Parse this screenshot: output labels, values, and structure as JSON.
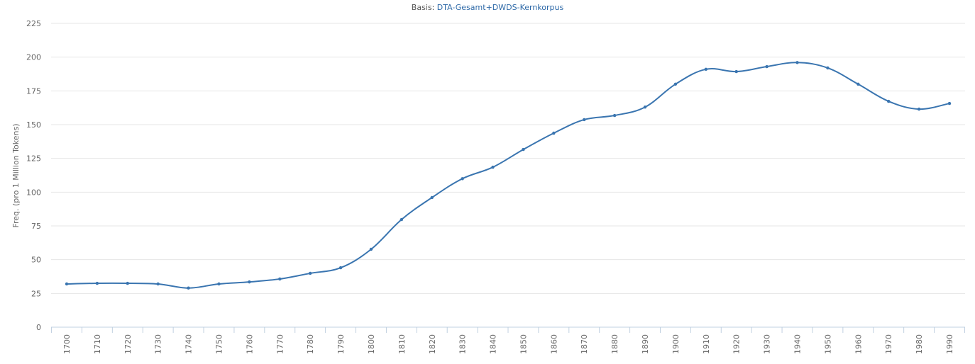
{
  "chart_data": {
    "type": "line",
    "title_prefix": "Basis:",
    "title_link": "DTA-Gesamt+DWDS-Kernkorpus",
    "xlabel": "",
    "ylabel": "Freq. (pro 1 Million Tokens)",
    "ylim": [
      0,
      225
    ],
    "yticks": [
      0,
      25,
      50,
      75,
      100,
      125,
      150,
      175,
      200,
      225
    ],
    "grid": true,
    "smooth": true,
    "line_color": "#3a75b0",
    "x": [
      1700,
      1710,
      1720,
      1730,
      1740,
      1750,
      1760,
      1770,
      1780,
      1790,
      1800,
      1810,
      1820,
      1830,
      1840,
      1850,
      1860,
      1870,
      1880,
      1890,
      1900,
      1910,
      1920,
      1930,
      1940,
      1950,
      1960,
      1970,
      1980,
      1990
    ],
    "y": [
      32,
      32.5,
      32.5,
      32,
      29,
      32,
      33.5,
      35.7,
      39.9,
      44,
      57.7,
      79.7,
      96,
      110,
      118.5,
      131.6,
      143.7,
      153.7,
      156.8,
      163,
      180,
      191,
      189.3,
      193,
      196,
      192,
      180,
      167.3,
      161.5,
      165.7
    ]
  }
}
